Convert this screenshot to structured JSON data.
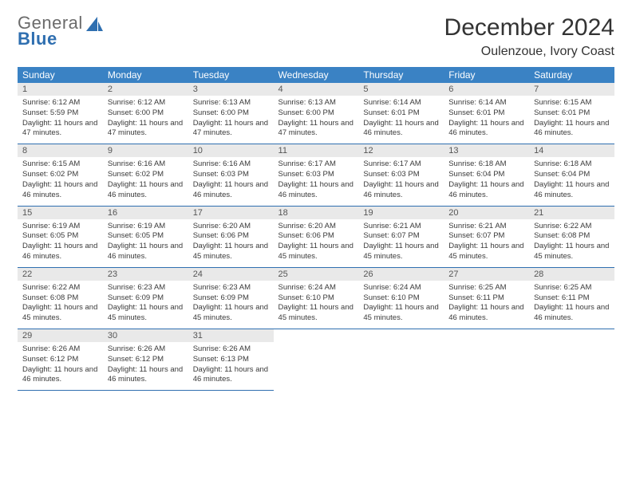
{
  "logo": {
    "line1": "General",
    "line2": "Blue"
  },
  "title": "December 2024",
  "location": "Oulenzoue, Ivory Coast",
  "colors": {
    "header_bg": "#3a82c4",
    "header_text": "#ffffff",
    "daynum_bg": "#e9e9e9",
    "rule": "#2f6fb0",
    "logo_gray": "#6b6b6b",
    "logo_blue": "#2f6fb0"
  },
  "weekdays": [
    "Sunday",
    "Monday",
    "Tuesday",
    "Wednesday",
    "Thursday",
    "Friday",
    "Saturday"
  ],
  "labels": {
    "sunrise": "Sunrise:",
    "sunset": "Sunset:",
    "daylight_prefix": "Daylight:"
  },
  "days": [
    {
      "n": 1,
      "sunrise": "6:12 AM",
      "sunset": "5:59 PM",
      "daylight": "11 hours and 47 minutes."
    },
    {
      "n": 2,
      "sunrise": "6:12 AM",
      "sunset": "6:00 PM",
      "daylight": "11 hours and 47 minutes."
    },
    {
      "n": 3,
      "sunrise": "6:13 AM",
      "sunset": "6:00 PM",
      "daylight": "11 hours and 47 minutes."
    },
    {
      "n": 4,
      "sunrise": "6:13 AM",
      "sunset": "6:00 PM",
      "daylight": "11 hours and 47 minutes."
    },
    {
      "n": 5,
      "sunrise": "6:14 AM",
      "sunset": "6:01 PM",
      "daylight": "11 hours and 46 minutes."
    },
    {
      "n": 6,
      "sunrise": "6:14 AM",
      "sunset": "6:01 PM",
      "daylight": "11 hours and 46 minutes."
    },
    {
      "n": 7,
      "sunrise": "6:15 AM",
      "sunset": "6:01 PM",
      "daylight": "11 hours and 46 minutes."
    },
    {
      "n": 8,
      "sunrise": "6:15 AM",
      "sunset": "6:02 PM",
      "daylight": "11 hours and 46 minutes."
    },
    {
      "n": 9,
      "sunrise": "6:16 AM",
      "sunset": "6:02 PM",
      "daylight": "11 hours and 46 minutes."
    },
    {
      "n": 10,
      "sunrise": "6:16 AM",
      "sunset": "6:03 PM",
      "daylight": "11 hours and 46 minutes."
    },
    {
      "n": 11,
      "sunrise": "6:17 AM",
      "sunset": "6:03 PM",
      "daylight": "11 hours and 46 minutes."
    },
    {
      "n": 12,
      "sunrise": "6:17 AM",
      "sunset": "6:03 PM",
      "daylight": "11 hours and 46 minutes."
    },
    {
      "n": 13,
      "sunrise": "6:18 AM",
      "sunset": "6:04 PM",
      "daylight": "11 hours and 46 minutes."
    },
    {
      "n": 14,
      "sunrise": "6:18 AM",
      "sunset": "6:04 PM",
      "daylight": "11 hours and 46 minutes."
    },
    {
      "n": 15,
      "sunrise": "6:19 AM",
      "sunset": "6:05 PM",
      "daylight": "11 hours and 46 minutes."
    },
    {
      "n": 16,
      "sunrise": "6:19 AM",
      "sunset": "6:05 PM",
      "daylight": "11 hours and 46 minutes."
    },
    {
      "n": 17,
      "sunrise": "6:20 AM",
      "sunset": "6:06 PM",
      "daylight": "11 hours and 45 minutes."
    },
    {
      "n": 18,
      "sunrise": "6:20 AM",
      "sunset": "6:06 PM",
      "daylight": "11 hours and 45 minutes."
    },
    {
      "n": 19,
      "sunrise": "6:21 AM",
      "sunset": "6:07 PM",
      "daylight": "11 hours and 45 minutes."
    },
    {
      "n": 20,
      "sunrise": "6:21 AM",
      "sunset": "6:07 PM",
      "daylight": "11 hours and 45 minutes."
    },
    {
      "n": 21,
      "sunrise": "6:22 AM",
      "sunset": "6:08 PM",
      "daylight": "11 hours and 45 minutes."
    },
    {
      "n": 22,
      "sunrise": "6:22 AM",
      "sunset": "6:08 PM",
      "daylight": "11 hours and 45 minutes."
    },
    {
      "n": 23,
      "sunrise": "6:23 AM",
      "sunset": "6:09 PM",
      "daylight": "11 hours and 45 minutes."
    },
    {
      "n": 24,
      "sunrise": "6:23 AM",
      "sunset": "6:09 PM",
      "daylight": "11 hours and 45 minutes."
    },
    {
      "n": 25,
      "sunrise": "6:24 AM",
      "sunset": "6:10 PM",
      "daylight": "11 hours and 45 minutes."
    },
    {
      "n": 26,
      "sunrise": "6:24 AM",
      "sunset": "6:10 PM",
      "daylight": "11 hours and 45 minutes."
    },
    {
      "n": 27,
      "sunrise": "6:25 AM",
      "sunset": "6:11 PM",
      "daylight": "11 hours and 46 minutes."
    },
    {
      "n": 28,
      "sunrise": "6:25 AM",
      "sunset": "6:11 PM",
      "daylight": "11 hours and 46 minutes."
    },
    {
      "n": 29,
      "sunrise": "6:26 AM",
      "sunset": "6:12 PM",
      "daylight": "11 hours and 46 minutes."
    },
    {
      "n": 30,
      "sunrise": "6:26 AM",
      "sunset": "6:12 PM",
      "daylight": "11 hours and 46 minutes."
    },
    {
      "n": 31,
      "sunrise": "6:26 AM",
      "sunset": "6:13 PM",
      "daylight": "11 hours and 46 minutes."
    }
  ],
  "grid": {
    "first_weekday_index": 0,
    "rows": 5,
    "cols": 7
  }
}
